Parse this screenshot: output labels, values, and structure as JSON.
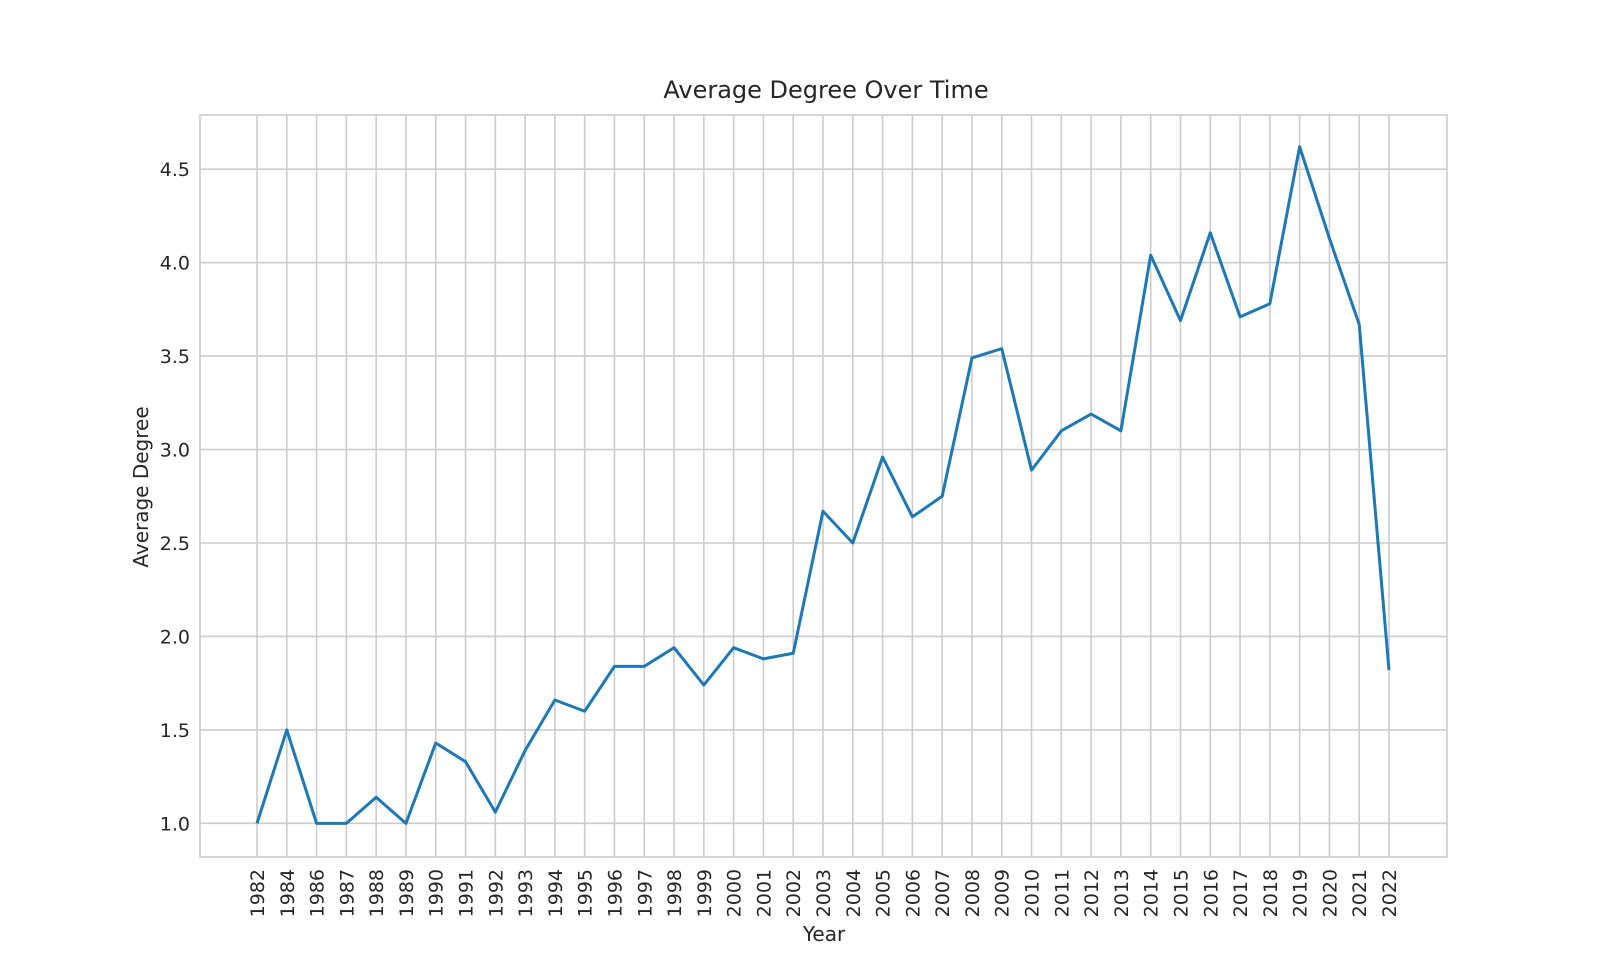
{
  "chart_data": {
    "type": "line",
    "title": "Average Degree Over Time",
    "xlabel": "Year",
    "ylabel": "Average Degree",
    "x": [
      "1982",
      "1984",
      "1986",
      "1987",
      "1988",
      "1989",
      "1990",
      "1991",
      "1992",
      "1993",
      "1994",
      "1995",
      "1996",
      "1997",
      "1998",
      "1999",
      "2000",
      "2001",
      "2002",
      "2003",
      "2004",
      "2005",
      "2006",
      "2007",
      "2008",
      "2009",
      "2010",
      "2011",
      "2012",
      "2013",
      "2014",
      "2015",
      "2016",
      "2017",
      "2018",
      "2019",
      "2020",
      "2021",
      "2022"
    ],
    "series": [
      {
        "values": [
          1.0,
          1.5,
          1.0,
          1.0,
          1.14,
          1.0,
          1.43,
          1.33,
          1.06,
          1.39,
          1.66,
          1.6,
          1.84,
          1.84,
          1.94,
          1.74,
          1.94,
          1.88,
          1.91,
          2.67,
          2.5,
          2.96,
          2.64,
          2.75,
          3.49,
          3.54,
          2.89,
          3.1,
          3.19,
          3.1,
          4.04,
          3.69,
          4.16,
          3.71,
          3.78,
          4.62,
          4.13,
          3.67,
          1.82
        ],
        "color": "#1f77b4"
      }
    ],
    "yticks": [
      "1.0",
      "1.5",
      "2.0",
      "2.5",
      "3.0",
      "3.5",
      "4.0",
      "4.5"
    ],
    "ylim": [
      0.82,
      4.79
    ],
    "grid": true,
    "legend": "none",
    "line_color": "#1f77b4",
    "grid_color": "#cccccc",
    "text_color": "#262626"
  }
}
